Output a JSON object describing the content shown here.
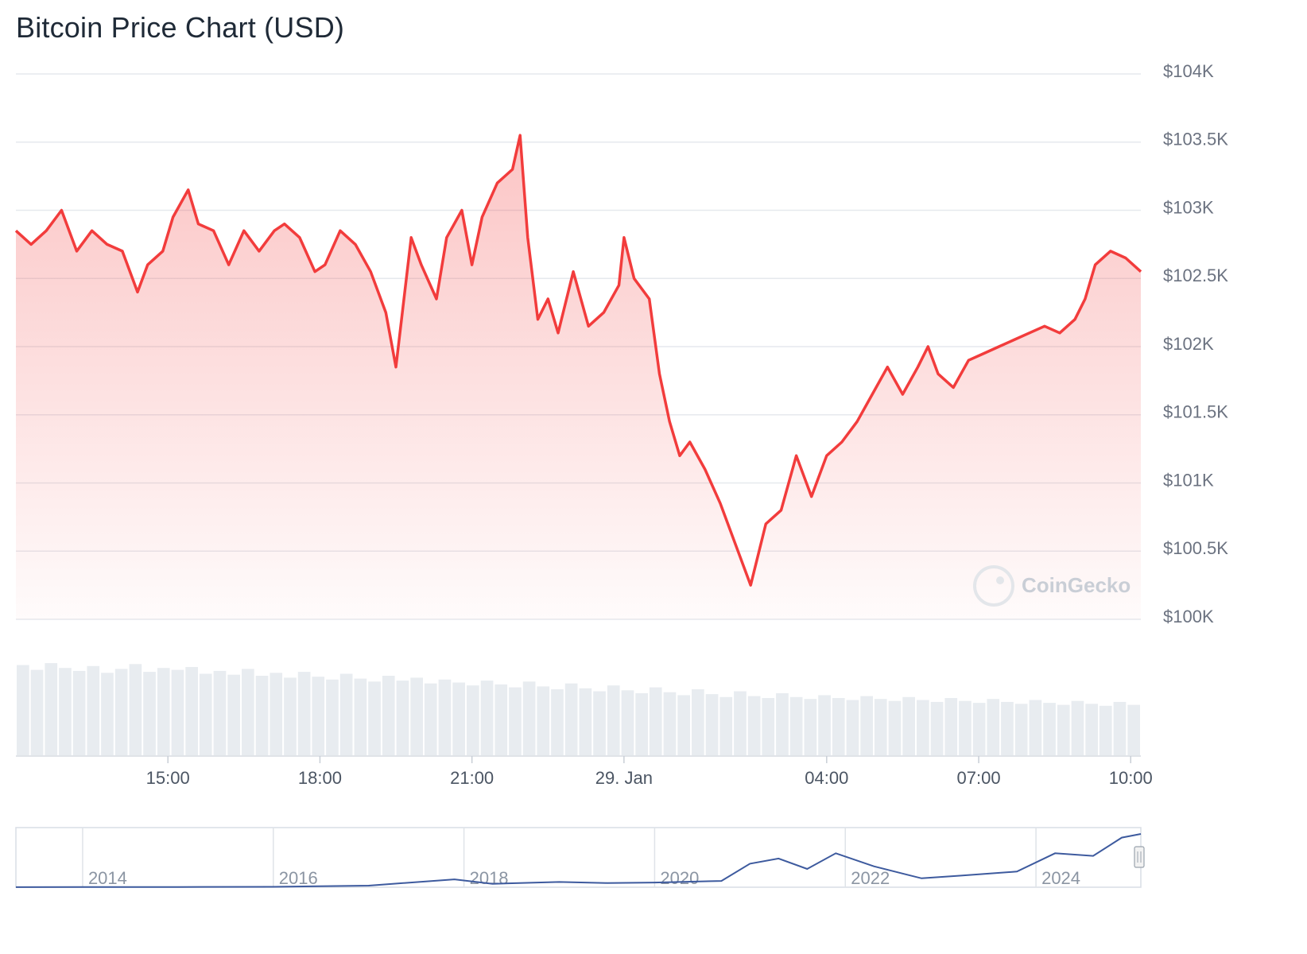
{
  "chart_data": {
    "type": "line",
    "title": "Bitcoin Price Chart (USD)",
    "currency": "USD",
    "ylim": [
      100000,
      104000
    ],
    "y_ticks": [
      100000,
      100500,
      101000,
      101500,
      102000,
      102500,
      103000,
      103500,
      104000
    ],
    "y_tick_labels": [
      "$100K",
      "$100.5K",
      "$101K",
      "$101.5K",
      "$102K",
      "$102.5K",
      "$103K",
      "$103.5K",
      "$104K"
    ],
    "x_range_hours": [
      12.0,
      34.2
    ],
    "x_ticks": [
      {
        "hour": 15,
        "label": "15:00"
      },
      {
        "hour": 18,
        "label": "18:00"
      },
      {
        "hour": 21,
        "label": "21:00"
      },
      {
        "hour": 24,
        "label": "29. Jan"
      },
      {
        "hour": 28,
        "label": "04:00"
      },
      {
        "hour": 31,
        "label": "07:00"
      },
      {
        "hour": 34,
        "label": "10:00"
      }
    ],
    "series": [
      {
        "name": "Price",
        "color": "#f23c3c",
        "points": [
          [
            12.0,
            102850
          ],
          [
            12.3,
            102750
          ],
          [
            12.6,
            102850
          ],
          [
            12.9,
            103000
          ],
          [
            13.2,
            102700
          ],
          [
            13.5,
            102850
          ],
          [
            13.8,
            102750
          ],
          [
            14.1,
            102700
          ],
          [
            14.4,
            102400
          ],
          [
            14.6,
            102600
          ],
          [
            14.9,
            102700
          ],
          [
            15.1,
            102950
          ],
          [
            15.4,
            103150
          ],
          [
            15.6,
            102900
          ],
          [
            15.9,
            102850
          ],
          [
            16.2,
            102600
          ],
          [
            16.5,
            102850
          ],
          [
            16.8,
            102700
          ],
          [
            17.1,
            102850
          ],
          [
            17.3,
            102900
          ],
          [
            17.6,
            102800
          ],
          [
            17.9,
            102550
          ],
          [
            18.1,
            102600
          ],
          [
            18.4,
            102850
          ],
          [
            18.7,
            102750
          ],
          [
            19.0,
            102550
          ],
          [
            19.3,
            102250
          ],
          [
            19.5,
            101850
          ],
          [
            19.8,
            102800
          ],
          [
            20.0,
            102600
          ],
          [
            20.3,
            102350
          ],
          [
            20.5,
            102800
          ],
          [
            20.8,
            103000
          ],
          [
            21.0,
            102600
          ],
          [
            21.2,
            102950
          ],
          [
            21.5,
            103200
          ],
          [
            21.8,
            103300
          ],
          [
            21.95,
            103550
          ],
          [
            22.1,
            102800
          ],
          [
            22.3,
            102200
          ],
          [
            22.5,
            102350
          ],
          [
            22.7,
            102100
          ],
          [
            23.0,
            102550
          ],
          [
            23.3,
            102150
          ],
          [
            23.6,
            102250
          ],
          [
            23.9,
            102450
          ],
          [
            24.0,
            102800
          ],
          [
            24.2,
            102500
          ],
          [
            24.5,
            102350
          ],
          [
            24.7,
            101800
          ],
          [
            24.9,
            101450
          ],
          [
            25.1,
            101200
          ],
          [
            25.3,
            101300
          ],
          [
            25.6,
            101100
          ],
          [
            25.9,
            100850
          ],
          [
            26.2,
            100550
          ],
          [
            26.5,
            100250
          ],
          [
            26.8,
            100700
          ],
          [
            27.1,
            100800
          ],
          [
            27.4,
            101200
          ],
          [
            27.7,
            100900
          ],
          [
            28.0,
            101200
          ],
          [
            28.3,
            101300
          ],
          [
            28.6,
            101450
          ],
          [
            28.9,
            101650
          ],
          [
            29.2,
            101850
          ],
          [
            29.5,
            101650
          ],
          [
            29.8,
            101850
          ],
          [
            30.0,
            102000
          ],
          [
            30.2,
            101800
          ],
          [
            30.5,
            101700
          ],
          [
            30.8,
            101900
          ],
          [
            31.1,
            101950
          ],
          [
            31.4,
            102000
          ],
          [
            31.7,
            102050
          ],
          [
            32.0,
            102100
          ],
          [
            32.3,
            102150
          ],
          [
            32.6,
            102100
          ],
          [
            32.9,
            102200
          ],
          [
            33.1,
            102350
          ],
          [
            33.3,
            102600
          ],
          [
            33.6,
            102700
          ],
          [
            33.9,
            102650
          ],
          [
            34.2,
            102550
          ]
        ]
      }
    ],
    "volume": {
      "name": "Volume",
      "color": "#e8ecf0",
      "relative_values": [
        0.93,
        0.88,
        0.95,
        0.9,
        0.87,
        0.92,
        0.85,
        0.89,
        0.94,
        0.86,
        0.9,
        0.88,
        0.91,
        0.84,
        0.87,
        0.83,
        0.89,
        0.82,
        0.85,
        0.8,
        0.86,
        0.81,
        0.78,
        0.84,
        0.79,
        0.76,
        0.82,
        0.77,
        0.8,
        0.74,
        0.78,
        0.75,
        0.72,
        0.77,
        0.73,
        0.7,
        0.76,
        0.71,
        0.68,
        0.74,
        0.69,
        0.66,
        0.72,
        0.67,
        0.64,
        0.7,
        0.65,
        0.62,
        0.68,
        0.63,
        0.6,
        0.66,
        0.61,
        0.59,
        0.64,
        0.6,
        0.58,
        0.62,
        0.59,
        0.57,
        0.61,
        0.58,
        0.56,
        0.6,
        0.57,
        0.55,
        0.59,
        0.56,
        0.54,
        0.58,
        0.55,
        0.53,
        0.57,
        0.54,
        0.52,
        0.56,
        0.53,
        0.51,
        0.55,
        0.52
      ]
    },
    "navigator": {
      "x_labels": [
        "2014",
        "2016",
        "2018",
        "2020",
        "2022",
        "2024"
      ],
      "years": [
        2013.3,
        2014,
        2015,
        2016,
        2017,
        2017.9,
        2018.3,
        2019,
        2019.5,
        2020,
        2020.7,
        2021.0,
        2021.3,
        2021.6,
        2021.9,
        2022.3,
        2022.8,
        2023.2,
        2023.8,
        2024.2,
        2024.6,
        2024.9,
        2025.1
      ],
      "prices": [
        100,
        500,
        400,
        700,
        3000,
        15000,
        6500,
        10000,
        8000,
        9000,
        12000,
        45000,
        55000,
        35000,
        65000,
        40000,
        17000,
        22000,
        30000,
        65000,
        60000,
        95000,
        102000
      ]
    },
    "watermark": "CoinGecko"
  }
}
